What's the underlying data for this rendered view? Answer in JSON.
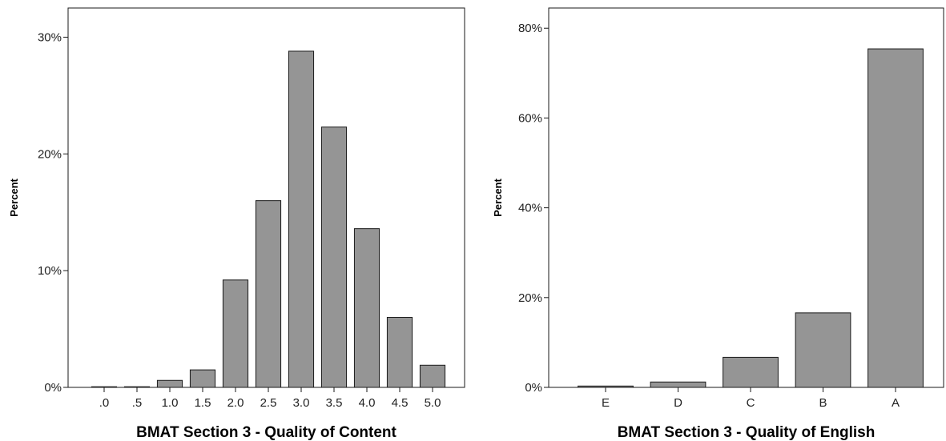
{
  "colors": {
    "bar_fill": "#959595",
    "bar_stroke": "#1a1a1a",
    "frame": "#1a1a1a",
    "background": "#ffffff"
  },
  "chart_data": [
    {
      "type": "bar",
      "xlabel": "BMAT Section 3 - Quality of Content",
      "ylabel": "Percent",
      "categories": [
        ".0",
        ".5",
        "1.0",
        "1.5",
        "2.0",
        "2.5",
        "3.0",
        "3.5",
        "4.0",
        "4.5",
        "5.0"
      ],
      "values": [
        0.05,
        0.05,
        0.6,
        1.5,
        9.2,
        16.0,
        28.8,
        22.3,
        13.6,
        6.0,
        1.9
      ],
      "ylim": [
        0,
        32.5
      ],
      "yticks": [
        0,
        10,
        20,
        30
      ],
      "ytick_labels": [
        "0%",
        "10%",
        "20%",
        "30%"
      ],
      "grid": false,
      "legend": "none"
    },
    {
      "type": "bar",
      "xlabel": "BMAT Section 3 - Quality of English",
      "ylabel": "Percent",
      "categories": [
        "E",
        "D",
        "C",
        "B",
        "A"
      ],
      "values": [
        0.3,
        1.2,
        6.7,
        16.6,
        75.4
      ],
      "ylim": [
        0,
        84.5
      ],
      "yticks": [
        0,
        20,
        40,
        60,
        80
      ],
      "ytick_labels": [
        "0%",
        "20%",
        "40%",
        "60%",
        "80%"
      ],
      "grid": false,
      "legend": "none"
    }
  ]
}
